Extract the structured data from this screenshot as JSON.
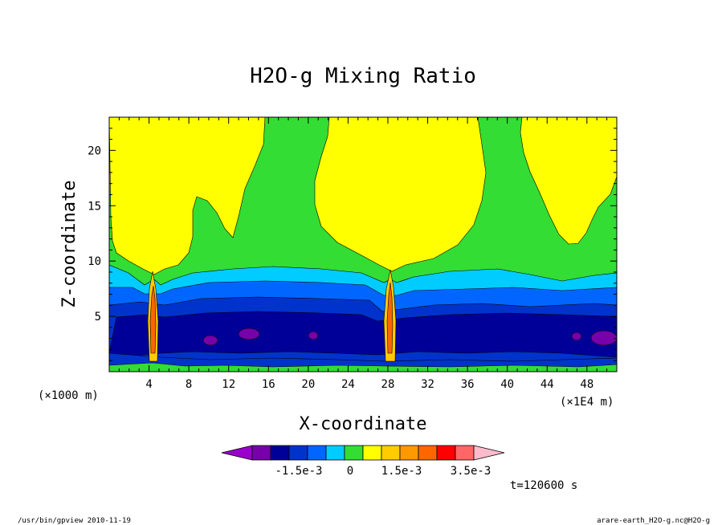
{
  "chart_data": {
    "type": "heatmap",
    "title": "H2O-g Mixing Ratio",
    "xlabel": "X-coordinate",
    "ylabel": "Z-coordinate",
    "x_unit_left": "(×1000 m)",
    "x_unit_right": "(×1E4 m)",
    "xlim": [
      0,
      51
    ],
    "ylim": [
      0,
      23
    ],
    "x_ticks": [
      "4",
      "8",
      "12",
      "16",
      "20",
      "24",
      "28",
      "32",
      "36",
      "40",
      "44",
      "48"
    ],
    "y_ticks": [
      "5",
      "10",
      "15",
      "20"
    ],
    "colorbar": {
      "colors": [
        "#9900cc",
        "#7700aa",
        "#000099",
        "#0033cc",
        "#0066ff",
        "#00ccff",
        "#33dd33",
        "#ffff00",
        "#ffcc00",
        "#ff9900",
        "#ff6600",
        "#ff0000",
        "#ff6666",
        "#ffbbcc"
      ],
      "labels": [
        "-1.5e-3",
        "0",
        "1.5e-3",
        "3.5e-3"
      ]
    },
    "time_label": "t=120600 s"
  },
  "footer": {
    "left": "/usr/bin/gpview 2010-11-19",
    "right": "arare-earth_H2O-g.nc@H2O-g"
  }
}
